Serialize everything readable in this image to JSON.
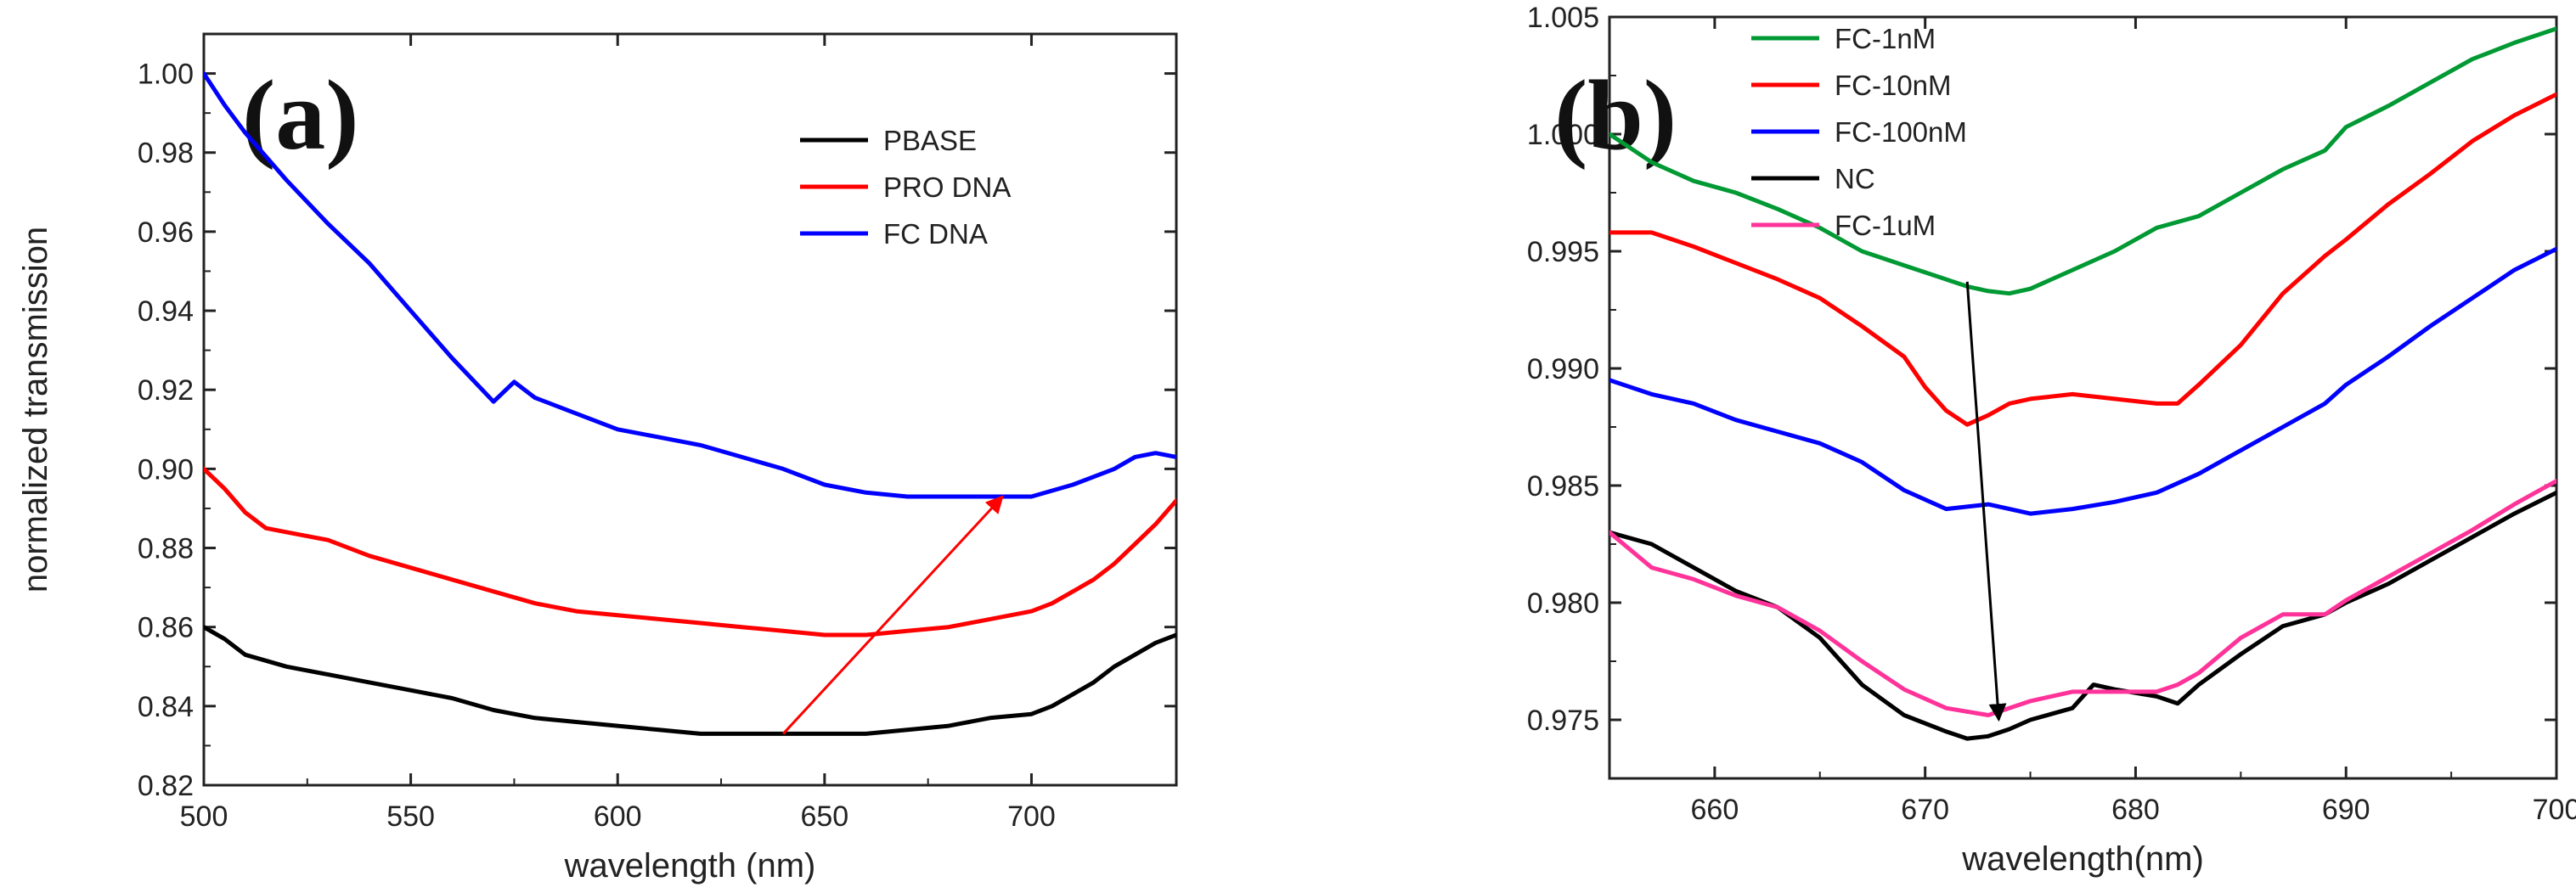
{
  "chart_data": [
    {
      "type": "line",
      "panel_label": "(a)",
      "xlabel": "wavelength (nm)",
      "ylabel": "normalized transmission",
      "xlim": [
        500,
        735
      ],
      "ylim": [
        0.82,
        1.01
      ],
      "xticks": [
        500,
        550,
        600,
        650,
        700
      ],
      "yticks": [
        0.82,
        0.84,
        0.86,
        0.88,
        0.9,
        0.92,
        0.94,
        0.96,
        0.98,
        1.0
      ],
      "ytick_decimals": 2,
      "legend_position": "top-right",
      "series": [
        {
          "name": "PBASE",
          "color": "#000000",
          "x": [
            500,
            505,
            510,
            520,
            530,
            540,
            550,
            560,
            570,
            580,
            590,
            600,
            610,
            620,
            630,
            640,
            650,
            660,
            670,
            680,
            690,
            700,
            705,
            710,
            715,
            720,
            725,
            730,
            735
          ],
          "y": [
            0.86,
            0.857,
            0.853,
            0.85,
            0.848,
            0.846,
            0.844,
            0.842,
            0.839,
            0.837,
            0.836,
            0.835,
            0.834,
            0.833,
            0.833,
            0.833,
            0.833,
            0.833,
            0.834,
            0.835,
            0.837,
            0.838,
            0.84,
            0.843,
            0.846,
            0.85,
            0.853,
            0.856,
            0.858
          ]
        },
        {
          "name": "PRO DNA",
          "color": "#ff0000",
          "x": [
            500,
            505,
            510,
            515,
            520,
            530,
            540,
            550,
            560,
            570,
            580,
            590,
            600,
            610,
            620,
            630,
            640,
            650,
            655,
            660,
            670,
            680,
            690,
            700,
            705,
            710,
            715,
            720,
            725,
            730,
            735
          ],
          "y": [
            0.9,
            0.895,
            0.889,
            0.885,
            0.884,
            0.882,
            0.878,
            0.875,
            0.872,
            0.869,
            0.866,
            0.864,
            0.863,
            0.862,
            0.861,
            0.86,
            0.859,
            0.858,
            0.858,
            0.858,
            0.859,
            0.86,
            0.862,
            0.864,
            0.866,
            0.869,
            0.872,
            0.876,
            0.881,
            0.886,
            0.892
          ]
        },
        {
          "name": "FC DNA",
          "color": "#0000ff",
          "x": [
            500,
            505,
            510,
            520,
            530,
            540,
            550,
            560,
            570,
            575,
            580,
            590,
            600,
            610,
            620,
            630,
            640,
            650,
            660,
            670,
            680,
            690,
            700,
            710,
            720,
            725,
            730,
            735
          ],
          "y": [
            1.0,
            0.992,
            0.985,
            0.973,
            0.962,
            0.952,
            0.94,
            0.928,
            0.917,
            0.922,
            0.918,
            0.914,
            0.91,
            0.908,
            0.906,
            0.903,
            0.9,
            0.896,
            0.894,
            0.893,
            0.893,
            0.893,
            0.893,
            0.896,
            0.9,
            0.903,
            0.904,
            0.903
          ]
        }
      ],
      "annotation_arrow": {
        "color": "#ff0000",
        "from": [
          640,
          0.833
        ],
        "to": [
          693,
          0.893
        ]
      }
    },
    {
      "type": "line",
      "panel_label": "(b)",
      "xlabel": "wavelength(nm)",
      "ylabel": "",
      "xlim": [
        655,
        700
      ],
      "ylim": [
        0.9725,
        1.005
      ],
      "xticks": [
        660,
        670,
        680,
        690,
        700
      ],
      "yticks": [
        0.975,
        0.98,
        0.985,
        0.99,
        0.995,
        1.0,
        1.005
      ],
      "ytick_decimals": 3,
      "legend_position": "top-left",
      "series": [
        {
          "name": "FC-1nM",
          "color": "#009933",
          "x": [
            655,
            657,
            659,
            661,
            663,
            665,
            667,
            669,
            671,
            672,
            673,
            674,
            675,
            677,
            679,
            681,
            683,
            685,
            687,
            689,
            690,
            692,
            694,
            696,
            698,
            700
          ],
          "y": [
            1.0,
            0.9988,
            0.998,
            0.9975,
            0.9968,
            0.996,
            0.995,
            0.9944,
            0.9938,
            0.9935,
            0.9933,
            0.9932,
            0.9934,
            0.9942,
            0.995,
            0.996,
            0.9965,
            0.9975,
            0.9985,
            0.9993,
            1.0003,
            1.0012,
            1.0022,
            1.0032,
            1.0039,
            1.0045
          ]
        },
        {
          "name": "FC-10nM",
          "color": "#ff0000",
          "x": [
            655,
            657,
            659,
            661,
            663,
            665,
            667,
            669,
            670,
            671,
            672,
            673,
            674,
            675,
            677,
            679,
            681,
            682,
            683,
            685,
            687,
            689,
            690,
            692,
            694,
            696,
            698,
            700
          ],
          "y": [
            0.9958,
            0.9958,
            0.9952,
            0.9945,
            0.9938,
            0.993,
            0.9918,
            0.9905,
            0.9892,
            0.9882,
            0.9876,
            0.988,
            0.9885,
            0.9887,
            0.9889,
            0.9887,
            0.9885,
            0.9885,
            0.9893,
            0.991,
            0.9932,
            0.9948,
            0.9955,
            0.997,
            0.9983,
            0.9997,
            1.0008,
            1.0017
          ]
        },
        {
          "name": "FC-100nM",
          "color": "#0000ff",
          "x": [
            655,
            657,
            659,
            661,
            663,
            665,
            667,
            669,
            671,
            673,
            675,
            677,
            679,
            681,
            683,
            685,
            687,
            689,
            690,
            692,
            694,
            696,
            698,
            700
          ],
          "y": [
            0.9895,
            0.9889,
            0.9885,
            0.9878,
            0.9873,
            0.9868,
            0.986,
            0.9848,
            0.984,
            0.9842,
            0.9838,
            0.984,
            0.9843,
            0.9847,
            0.9855,
            0.9865,
            0.9875,
            0.9885,
            0.9893,
            0.9905,
            0.9918,
            0.993,
            0.9942,
            0.9951
          ]
        },
        {
          "name": "NC",
          "color": "#000000",
          "x": [
            655,
            657,
            659,
            661,
            663,
            665,
            667,
            669,
            671,
            672,
            673,
            674,
            675,
            677,
            678,
            679,
            681,
            682,
            683,
            685,
            687,
            689,
            690,
            692,
            694,
            696,
            698,
            700
          ],
          "y": [
            0.983,
            0.9825,
            0.9815,
            0.9805,
            0.9798,
            0.9785,
            0.9765,
            0.9752,
            0.9745,
            0.9742,
            0.9743,
            0.9746,
            0.975,
            0.9755,
            0.9765,
            0.9763,
            0.976,
            0.9757,
            0.9765,
            0.9778,
            0.979,
            0.9795,
            0.98,
            0.9808,
            0.9818,
            0.9828,
            0.9838,
            0.9847
          ]
        },
        {
          "name": "FC-1uM",
          "color": "#ff3399",
          "x": [
            655,
            657,
            659,
            661,
            663,
            665,
            667,
            669,
            671,
            673,
            675,
            677,
            679,
            681,
            682,
            683,
            685,
            687,
            689,
            690,
            692,
            694,
            696,
            698,
            700
          ],
          "y": [
            0.983,
            0.9815,
            0.981,
            0.9803,
            0.9798,
            0.9788,
            0.9775,
            0.9763,
            0.9755,
            0.9752,
            0.9758,
            0.9762,
            0.9762,
            0.9762,
            0.9765,
            0.977,
            0.9785,
            0.9795,
            0.9795,
            0.9801,
            0.9811,
            0.9821,
            0.9831,
            0.9842,
            0.9852
          ]
        }
      ],
      "annotation_arrow": {
        "color": "#000000",
        "from": [
          672,
          0.9937
        ],
        "to": [
          673.5,
          0.975
        ]
      }
    }
  ]
}
